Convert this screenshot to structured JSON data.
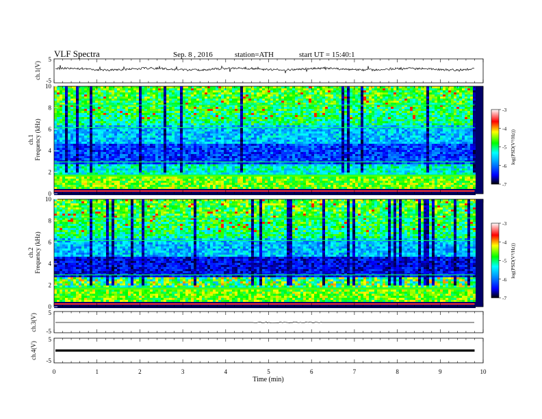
{
  "header": {
    "title": "VLF Spectra",
    "date": "Sep. 8 , 2016",
    "station": "station=ATH",
    "start": "start UT =  15:40:1"
  },
  "chart_data": [
    {
      "type": "line",
      "name": "ch1-waveform",
      "ylabel": "ch.1(V)",
      "ylim": [
        -5,
        5
      ],
      "y_ticks": [
        "5",
        "-5"
      ],
      "xlim": [
        0,
        10
      ]
    },
    {
      "type": "heatmap",
      "name": "ch1-spectrogram",
      "ylabel_channel": "ch.1",
      "ylabel": "Frequency (kHz)",
      "ylim": [
        0,
        10
      ],
      "y_ticks": [
        "10",
        "8",
        "6",
        "4",
        "2",
        "0"
      ],
      "colorbar": {
        "label": "log(PSD(V²/Hz))",
        "range": [
          -7,
          -3
        ],
        "ticks": [
          "-3",
          "-4",
          "-5",
          "-6",
          "-7"
        ]
      }
    },
    {
      "type": "heatmap",
      "name": "ch2-spectrogram",
      "ylabel_channel": "ch.2",
      "ylabel": "Frequency (kHz)",
      "ylim": [
        0,
        10
      ],
      "y_ticks": [
        "10",
        "8",
        "6",
        "4",
        "2",
        "0"
      ],
      "colorbar": {
        "label": "log(PSD(V²/Hz))",
        "range": [
          -7,
          -3
        ],
        "ticks": [
          "-3",
          "-4",
          "-5",
          "-6",
          "-7"
        ]
      }
    },
    {
      "type": "line",
      "name": "ch3-waveform",
      "ylabel": "ch.3(V)",
      "ylim": [
        -5,
        5
      ],
      "y_ticks": [
        "5",
        "-5"
      ]
    },
    {
      "type": "line",
      "name": "ch4-waveform",
      "ylabel": "ch.4(V)",
      "ylim": [
        -5,
        5
      ],
      "y_ticks": [
        "5",
        "-5"
      ],
      "xlabel": "Time (min)",
      "xlim": [
        0,
        10
      ],
      "x_ticks": [
        "0",
        "1",
        "2",
        "3",
        "4",
        "5",
        "6",
        "7",
        "8",
        "9",
        "10"
      ],
      "data_end_min": 9.8
    }
  ],
  "colors": {
    "colormap": [
      "#000000",
      "#0000ff",
      "#00ffff",
      "#00ff00",
      "#ffff00",
      "#ff0000",
      "#ffffff"
    ]
  }
}
